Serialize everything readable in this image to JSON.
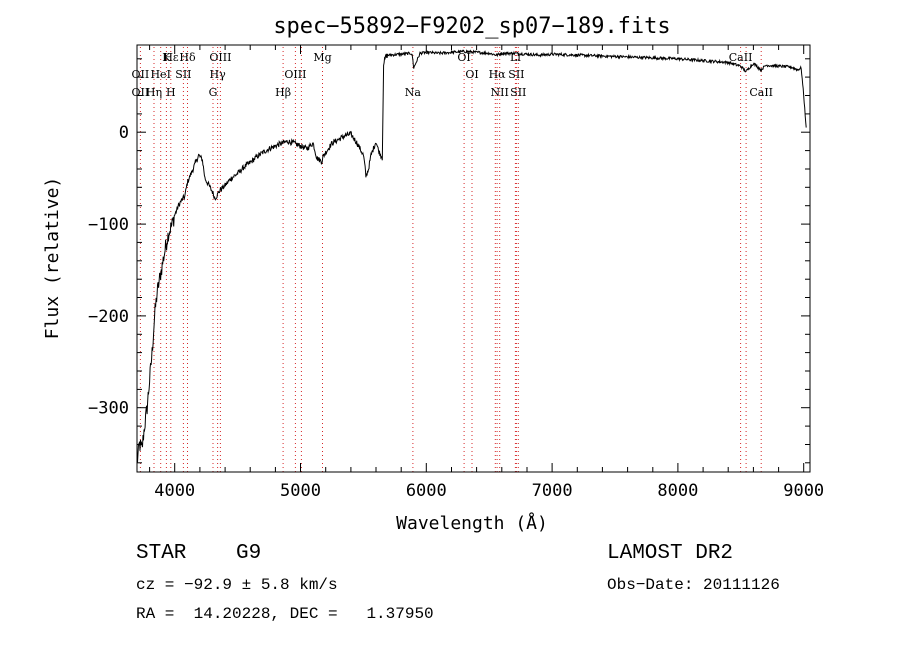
{
  "chart_data": {
    "type": "line",
    "title": "spec−55892−F9202_sp07−189.fits",
    "xlabel": "Wavelength (Å)",
    "ylabel": "Flux (relative)",
    "xlim": [
      3700,
      9050
    ],
    "ylim": [
      -370,
      95
    ],
    "x_ticks": [
      {
        "value": 4000,
        "label": "4000"
      },
      {
        "value": 5000,
        "label": "5000"
      },
      {
        "value": 6000,
        "label": "6000"
      },
      {
        "value": 7000,
        "label": "7000"
      },
      {
        "value": 8000,
        "label": "8000"
      },
      {
        "value": 9000,
        "label": "9000"
      }
    ],
    "y_ticks": [
      {
        "value": 0,
        "label": "0"
      },
      {
        "value": -100,
        "label": "−100"
      },
      {
        "value": -200,
        "label": "−200"
      },
      {
        "value": -300,
        "label": "−300"
      }
    ],
    "grid": false,
    "series": [
      {
        "x": [
          3700,
          3720,
          3740,
          3760,
          3780,
          3800,
          3820,
          3840,
          3860,
          3880,
          3900,
          3920,
          3950,
          3980,
          4000,
          4030,
          4050,
          4080,
          4100,
          4130,
          4160,
          4190,
          4220,
          4240,
          4260,
          4280,
          4300,
          4320,
          4340,
          4360,
          4400,
          4450,
          4500,
          4550,
          4600,
          4650,
          4700,
          4750,
          4800,
          4850,
          4900,
          4950,
          5000,
          5050,
          5080,
          5100,
          5130,
          5170,
          5180,
          5200,
          5250,
          5300,
          5350,
          5400,
          5450,
          5500,
          5510,
          5520,
          5540,
          5560,
          5600,
          5620,
          5650,
          5660,
          5680,
          5700,
          5800,
          5880,
          5890,
          5900,
          5950,
          6000,
          6100,
          6200,
          6300,
          6400,
          6500,
          6560,
          6600,
          6700,
          6800,
          6900,
          7000,
          7200,
          7400,
          7600,
          7800,
          8000,
          8200,
          8400,
          8500,
          8540,
          8600,
          8660,
          8700,
          8800,
          8900,
          8950,
          8980,
          9000,
          9020
        ],
        "y": [
          -360,
          -340,
          -345,
          -320,
          -300,
          -270,
          -240,
          -200,
          -175,
          -160,
          -145,
          -130,
          -110,
          -100,
          -90,
          -80,
          -75,
          -70,
          -55,
          -45,
          -35,
          -25,
          -30,
          -50,
          -55,
          -60,
          -65,
          -72,
          -68,
          -63,
          -58,
          -50,
          -45,
          -38,
          -33,
          -27,
          -22,
          -18,
          -15,
          -12,
          -10,
          -12,
          -15,
          -18,
          -14,
          -12,
          -28,
          -32,
          -26,
          -22,
          -12,
          -8,
          -4,
          -2,
          -12,
          -25,
          -35,
          -48,
          -40,
          -25,
          -10,
          -20,
          -28,
          75,
          83,
          84,
          85,
          86,
          82,
          70,
          86,
          87,
          86,
          87,
          88,
          87,
          86,
          84,
          86,
          86,
          85,
          84,
          85,
          84,
          83,
          82,
          81,
          80,
          78,
          76,
          72,
          66,
          75,
          68,
          73,
          72,
          71,
          68,
          70,
          40,
          5
        ]
      }
    ],
    "line_markers": {
      "top_row1": [
        {
          "label": "Hε",
          "x": 3970
        },
        {
          "label": "K",
          "x": 3933.7
        },
        {
          "label": "Hδ",
          "x": 4101.7
        },
        {
          "label": "OIII",
          "x": 4363
        },
        {
          "label": "Mg",
          "x": 5175
        },
        {
          "label": "OI",
          "x": 6300
        },
        {
          "label": "Li",
          "x": 6708
        },
        {
          "label": "CaII",
          "x": 8498
        }
      ],
      "top_row2": [
        {
          "label": "OII",
          "x": 3727
        },
        {
          "label": "HeI",
          "x": 3888.6
        },
        {
          "label": "SII",
          "x": 4068.6
        },
        {
          "label": "Hγ",
          "x": 4340.5
        },
        {
          "label": "OIII",
          "x": 4959
        },
        {
          "label": "OI",
          "x": 6363
        },
        {
          "label": "Hα",
          "x": 6562.8
        },
        {
          "label": "SII",
          "x": 6716
        }
      ],
      "top_row3": [
        {
          "label": "OII",
          "x": 3727
        },
        {
          "label": "Hη",
          "x": 3835.4
        },
        {
          "label": "H",
          "x": 3968.5
        },
        {
          "label": "G",
          "x": 4304.4
        },
        {
          "label": "Hβ",
          "x": 4861.3
        },
        {
          "label": "Na",
          "x": 5893
        },
        {
          "label": "NII",
          "x": 6583
        },
        {
          "label": "SII",
          "x": 6731
        },
        {
          "label": "CaII",
          "x": 8662
        }
      ],
      "lines": [
        3727,
        3835.4,
        3888.6,
        3933.7,
        3968.5,
        4068.6,
        4101.7,
        4304.4,
        4340.5,
        4363,
        4861.3,
        4959,
        5007,
        5175,
        5893,
        6300,
        6363,
        6548,
        6562.8,
        6583,
        6708,
        6716,
        6731,
        8498,
        8542,
        8662
      ],
      "color": "#d62728"
    }
  },
  "info": {
    "class_label": "STAR",
    "subclass": "G9",
    "survey": "LAMOST DR2",
    "cz_text": "cz = −92.9 ± 5.8 km/s",
    "obs_date": "Obs−Date: 20111126",
    "radec": "RA =  14.20228, DEC =   1.37950"
  }
}
